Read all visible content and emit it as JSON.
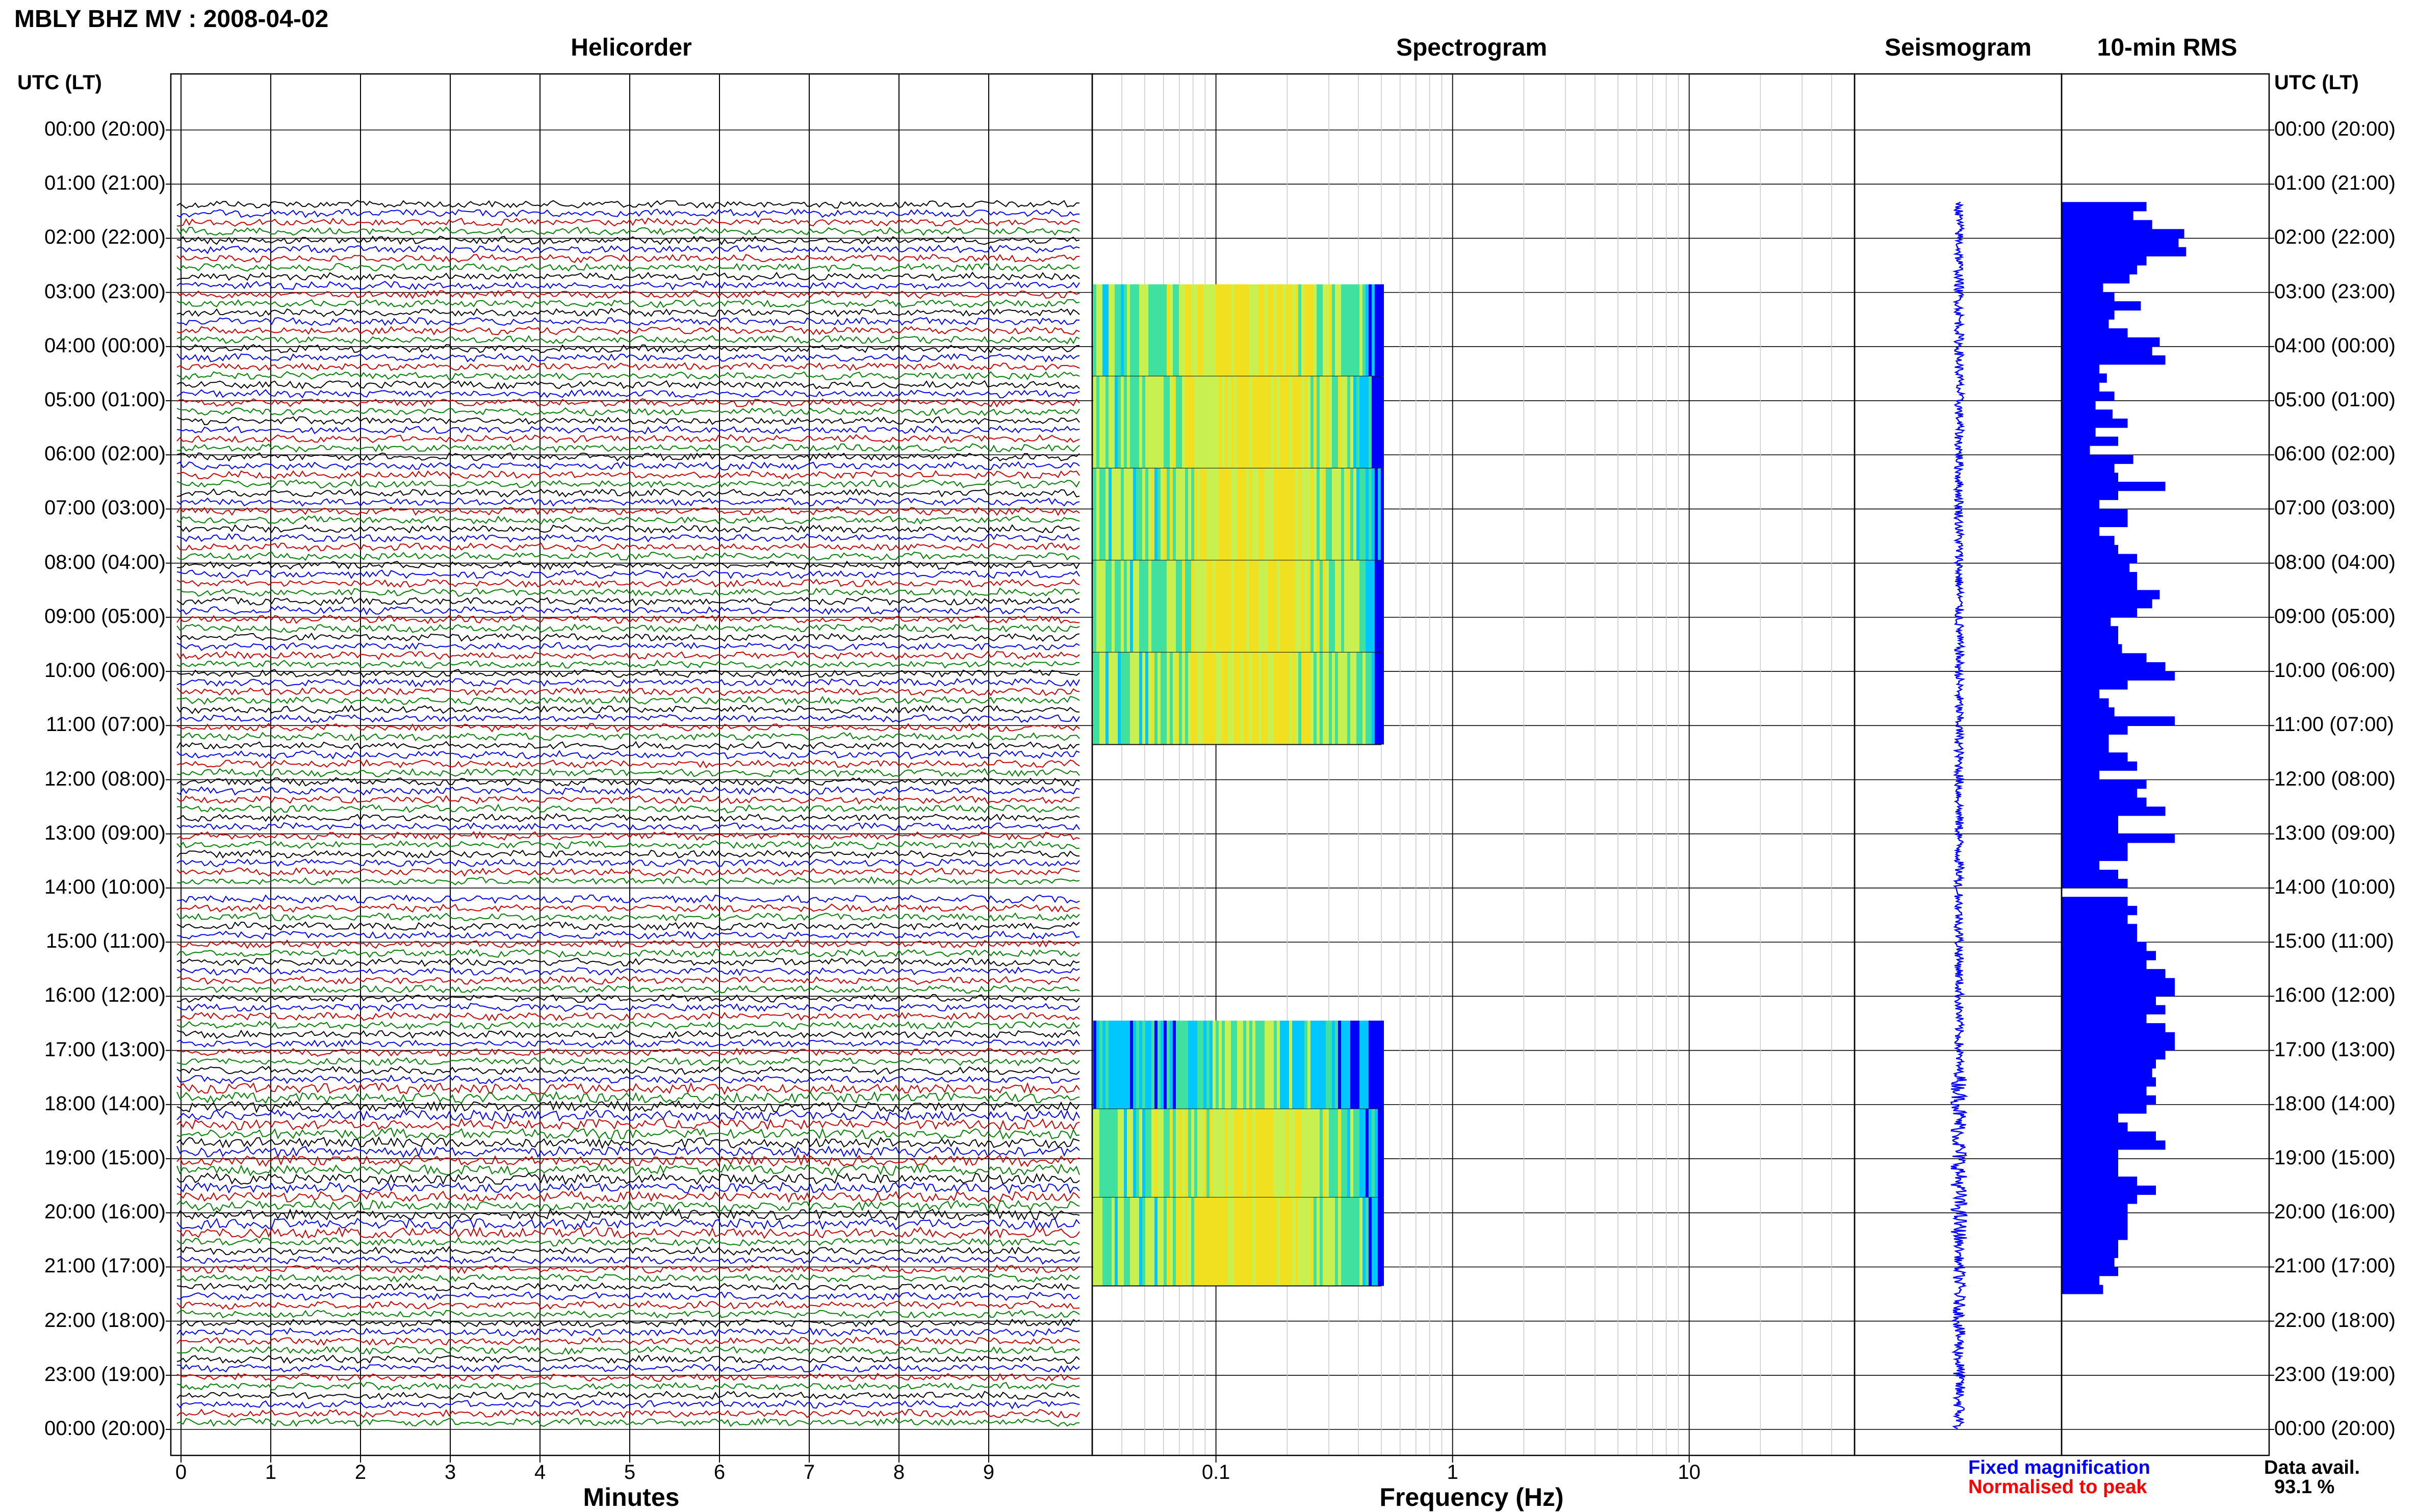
{
  "header": {
    "title": "MBLY BHZ MV : 2008-04-02"
  },
  "panels": {
    "helicorder": "Helicorder",
    "spectrogram": "Spectrogram",
    "seismogram": "Seismogram",
    "rms": "10-min RMS"
  },
  "time_axis": {
    "header": "UTC (LT)",
    "labels": [
      "00:00 (20:00)",
      "01:00 (21:00)",
      "02:00 (22:00)",
      "03:00 (23:00)",
      "04:00 (00:00)",
      "05:00 (01:00)",
      "06:00 (02:00)",
      "07:00 (03:00)",
      "08:00 (04:00)",
      "09:00 (05:00)",
      "10:00 (06:00)",
      "11:00 (07:00)",
      "12:00 (08:00)",
      "13:00 (09:00)",
      "14:00 (10:00)",
      "15:00 (11:00)",
      "16:00 (12:00)",
      "17:00 (13:00)",
      "18:00 (14:00)",
      "19:00 (15:00)",
      "20:00 (16:00)",
      "21:00 (17:00)",
      "22:00 (18:00)",
      "23:00 (19:00)",
      "00:00 (20:00)"
    ]
  },
  "helicorder_axis": {
    "ticks": [
      "0",
      "1",
      "2",
      "3",
      "4",
      "5",
      "6",
      "7",
      "8",
      "9"
    ],
    "label": "Minutes"
  },
  "spectrogram_axis": {
    "ticks": [
      "0.1",
      "1",
      "10"
    ],
    "label": "Frequency (Hz)"
  },
  "legend": {
    "fixed": "Fixed magnification",
    "normalised": "Normalised to peak"
  },
  "availability": {
    "label": "Data avail.",
    "value": "93.1 %"
  },
  "colors": {
    "trace_cycle": [
      "#000000",
      "#0000ff",
      "#cc0000",
      "#008000"
    ],
    "rms_bar": "#0000ff",
    "seismogram": "#0000ff",
    "grid": "#000000",
    "spectrogram_palette": [
      "#0000ff",
      "#00c8ff",
      "#40e0a0",
      "#c8f050",
      "#f0e020"
    ]
  },
  "chart_data": {
    "type": "helicorder",
    "hours_utc": [
      0,
      24
    ],
    "data_gap_hours": [
      [
        0,
        1.3
      ],
      [
        14.0,
        14.1
      ]
    ],
    "spectrogram_blocks_hours": [
      [
        2.85,
        11.35
      ],
      [
        16.45,
        21.35
      ]
    ],
    "rms_10min": {
      "unit": "relative",
      "start_hour": 1.33,
      "values": [
        45,
        38,
        48,
        65,
        62,
        66,
        45,
        40,
        36,
        22,
        28,
        42,
        28,
        25,
        35,
        52,
        48,
        55,
        20,
        24,
        20,
        28,
        18,
        27,
        35,
        18,
        30,
        15,
        38,
        28,
        30,
        55,
        30,
        20,
        35,
        35,
        20,
        28,
        30,
        40,
        36,
        40,
        40,
        52,
        48,
        40,
        26,
        30,
        30,
        32,
        45,
        55,
        60,
        35,
        20,
        25,
        28,
        60,
        35,
        25,
        25,
        35,
        40,
        20,
        45,
        40,
        45,
        55,
        30,
        30,
        60,
        35,
        35,
        20,
        30,
        35,
        33,
        35,
        40,
        35,
        40,
        40,
        45,
        50,
        45,
        55,
        60,
        60,
        50,
        55,
        45,
        55,
        60,
        60,
        55,
        50,
        48,
        50,
        45,
        50,
        45,
        30,
        35,
        50,
        55,
        30,
        30,
        30,
        40,
        50,
        40,
        35,
        35,
        35,
        35,
        30,
        30,
        28,
        30,
        20,
        22
      ]
    }
  }
}
